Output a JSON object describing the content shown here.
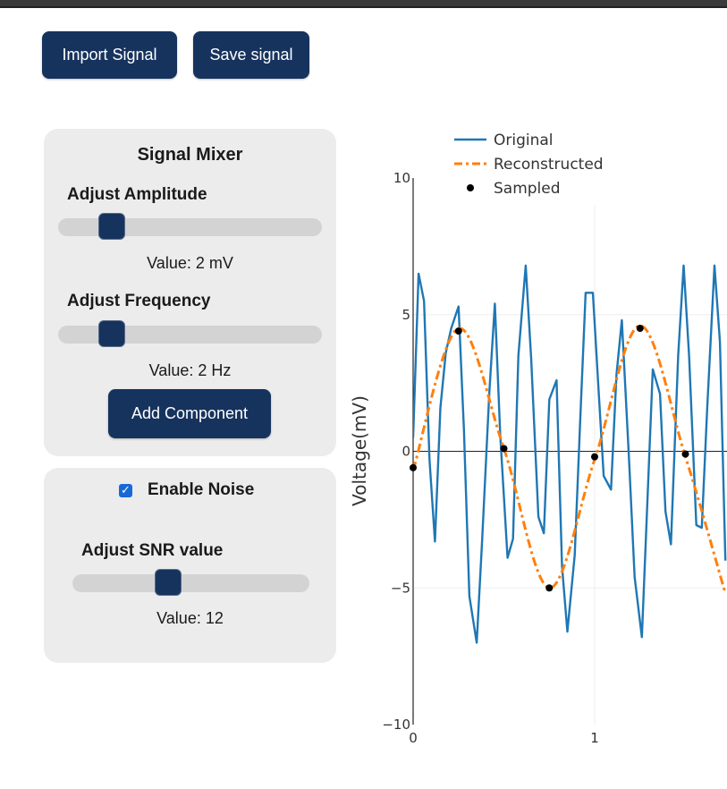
{
  "toolbar": {
    "import_label": "Import Signal",
    "save_label": "Save signal"
  },
  "mixer": {
    "title": "Signal Mixer",
    "amplitude": {
      "label": "Adjust Amplitude",
      "value_text": "Value: 2 mV",
      "level": 0.17
    },
    "frequency": {
      "label": "Adjust Frequency",
      "value_text": "Value: 2 Hz",
      "level": 0.17
    },
    "add_label": "Add Component"
  },
  "noise": {
    "enable_label": "Enable Noise",
    "enabled": true,
    "snr": {
      "label": "Adjust SNR value",
      "value_text": "Value: 12",
      "level": 0.39
    }
  },
  "chart_data": {
    "type": "line",
    "ylabel": "Voltage(mV)",
    "xlabel": "",
    "xlim": [
      0,
      1.72
    ],
    "ylim": [
      -10,
      10
    ],
    "xticks": [
      "0",
      "1"
    ],
    "yticks": [
      "10",
      "5",
      "0",
      "−5",
      "−10"
    ],
    "legend": [
      "Original",
      "Reconstructed",
      "Sampled"
    ],
    "legend_position": "top-left",
    "colors": {
      "original": "#1f77b4",
      "reconstructed": "#ff7f0e",
      "sampled": "#000000"
    },
    "series": [
      {
        "name": "Original",
        "x": [
          0,
          0.03,
          0.06,
          0.09,
          0.12,
          0.15,
          0.18,
          0.21,
          0.25,
          0.28,
          0.31,
          0.35,
          0.38,
          0.42,
          0.45,
          0.48,
          0.52,
          0.55,
          0.58,
          0.62,
          0.65,
          0.69,
          0.72,
          0.75,
          0.79,
          0.82,
          0.85,
          0.89,
          0.92,
          0.95,
          0.99,
          1.02,
          1.05,
          1.09,
          1.12,
          1.15,
          1.19,
          1.22,
          1.26,
          1.29,
          1.32,
          1.36,
          1.39,
          1.42,
          1.46,
          1.49,
          1.52,
          1.56,
          1.59,
          1.62,
          1.66,
          1.69,
          1.72
        ],
        "y": [
          0.5,
          6.5,
          5.5,
          -0.3,
          -3.3,
          1.6,
          3.6,
          4.5,
          5.3,
          0.8,
          -5.3,
          -7.0,
          -3.3,
          2.2,
          5.4,
          0.6,
          -3.9,
          -3.2,
          3.5,
          6.8,
          3.4,
          -2.4,
          -3.0,
          1.9,
          2.6,
          -4.2,
          -6.6,
          -3.8,
          1.1,
          5.8,
          5.8,
          2.4,
          -0.9,
          -1.4,
          2.8,
          4.8,
          -0.4,
          -4.6,
          -6.8,
          -1.9,
          3.0,
          2.1,
          -2.2,
          -3.4,
          3.5,
          6.8,
          3.5,
          -2.7,
          -2.8,
          1.6,
          6.8,
          4.0,
          -4.0
        ]
      },
      {
        "name": "Reconstructed",
        "x": [
          0,
          0.25,
          0.5,
          0.75,
          1.0,
          1.25,
          1.5,
          1.72
        ],
        "y": [
          -0.7,
          4.5,
          0.1,
          -5.0,
          -0.3,
          4.6,
          -0.2,
          -5.2
        ]
      },
      {
        "name": "Sampled",
        "x": [
          0,
          0.25,
          0.5,
          0.75,
          1.0,
          1.25,
          1.5
        ],
        "y": [
          -0.6,
          4.4,
          0.1,
          -5.0,
          -0.2,
          4.5,
          -0.1
        ]
      }
    ]
  }
}
